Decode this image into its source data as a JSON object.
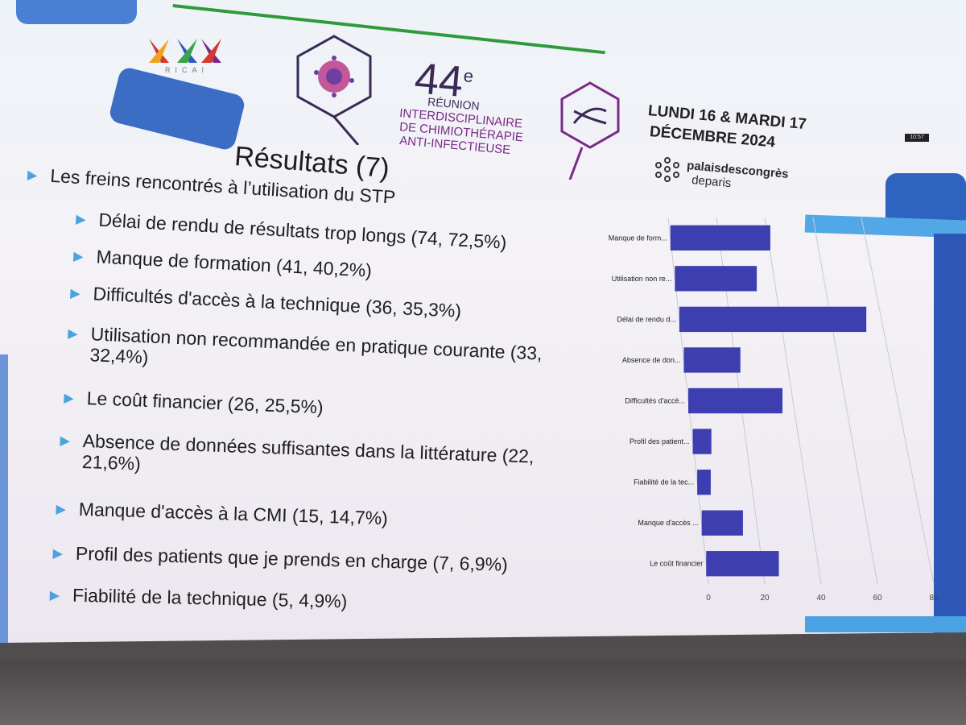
{
  "event": {
    "number": "44",
    "number_sup": "e",
    "line1": "RÉUNION",
    "line2": "INTERDISCIPLINAIRE",
    "line3": "DE CHIMIOTHÉRAPIE",
    "line4": "ANTI-INFECTIEUSE",
    "logo_text": "RICAI"
  },
  "dates": {
    "line1": "LUNDI 16 & MARDI 17",
    "line2": "DÉCEMBRE 2024"
  },
  "venue": {
    "name": "palaisdescongrès",
    "city": "deparis"
  },
  "slide": {
    "title": "Résultats (7)",
    "main_bullet": "Les freins rencontrés à l’utilisation du STP",
    "items": [
      {
        "text": "Délai de rendu de résultats trop longs (74, 72,5%)"
      },
      {
        "text": "Manque de formation (41, 40,2%)"
      },
      {
        "text": "Difficultés d'accès à la technique (36, 35,3%)"
      },
      {
        "text": "Utilisation non recommandée en pratique courante (33,",
        "text2": "32,4%)"
      },
      {
        "text": "Le coût financier (26, 25,5%)"
      },
      {
        "text": "Absence de données suffisantes dans la littérature (22,",
        "text2": "21,6%)"
      },
      {
        "text": "Manque d'accès à la CMI (15, 14,7%)"
      },
      {
        "text": "Profil des patients que je prends en charge  (7, 6,9%)"
      },
      {
        "text": "Fiabilité de la technique (5, 4,9%)"
      }
    ]
  },
  "chart_data": {
    "type": "bar",
    "orientation": "horizontal",
    "categories": [
      "Manque de form...",
      "Utilisation non re...",
      "Délai de rendu d...",
      "Absence de don...",
      "Difficultés d'accè...",
      "Profil des patient...",
      "Fiabilité de la tec...",
      "Manque d'accès ...",
      "Le coût financier"
    ],
    "values": [
      41,
      33,
      74,
      22,
      36,
      7,
      5,
      15,
      26
    ],
    "xlim": [
      0,
      80
    ],
    "xticks": [
      0,
      20,
      40,
      60,
      80
    ],
    "grid": true,
    "bar_color": "#3d3fb0"
  },
  "clock": "10:57"
}
